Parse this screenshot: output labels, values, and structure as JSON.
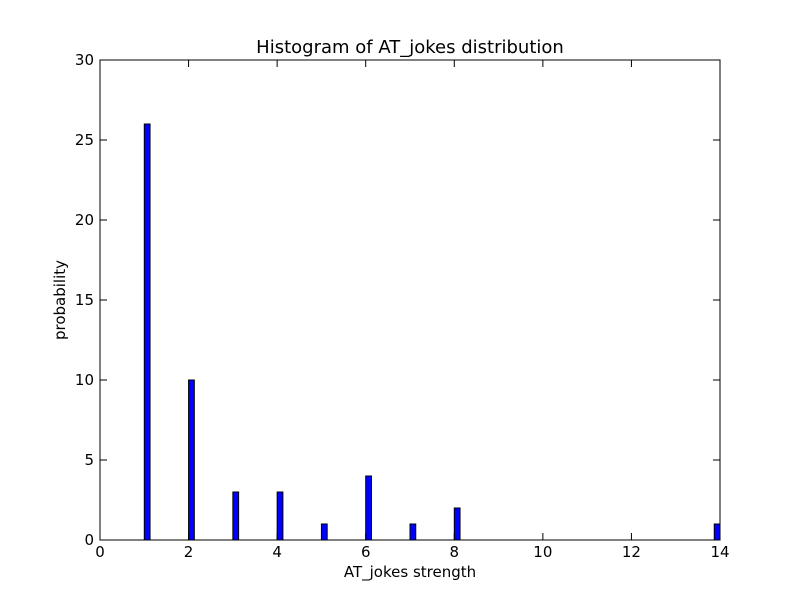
{
  "chart_data": {
    "type": "bar",
    "title": "Histogram of AT_jokes  distribution",
    "xlabel": "AT_jokes  strength",
    "ylabel": "probability",
    "xlim": [
      0,
      14
    ],
    "ylim": [
      0,
      30
    ],
    "x_ticks": [
      0,
      2,
      4,
      6,
      8,
      10,
      12,
      14
    ],
    "y_ticks": [
      0,
      5,
      10,
      15,
      20,
      25,
      30
    ],
    "x": [
      1,
      2,
      3,
      4,
      5,
      6,
      7,
      8,
      14
    ],
    "values": [
      26,
      10,
      3,
      3,
      1,
      4,
      1,
      2,
      1
    ],
    "bar_width": 0.13,
    "bar_color": "#0000ff",
    "grid": false,
    "legend": "none"
  }
}
